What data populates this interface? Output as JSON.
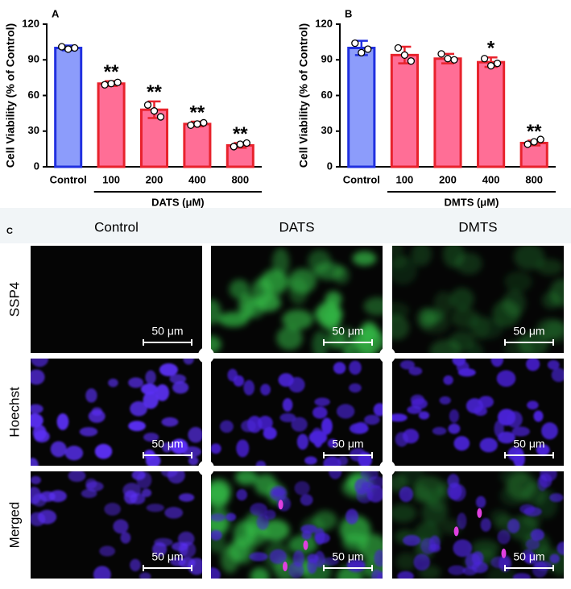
{
  "chart_data": [
    {
      "type": "bar",
      "panel": "A",
      "ylabel": "Cell Viability (% of Control)",
      "categories": [
        "Control",
        "100",
        "200",
        "400",
        "800"
      ],
      "values": [
        100,
        70,
        48,
        36,
        18
      ],
      "errors": [
        2,
        2,
        7,
        2,
        2
      ],
      "points": [
        [
          101,
          99,
          100
        ],
        [
          69,
          70,
          71
        ],
        [
          52,
          47,
          42
        ],
        [
          35,
          36,
          37
        ],
        [
          17,
          19,
          20
        ]
      ],
      "bar_colors": [
        "#8c9cfb",
        "#ff6e96",
        "#ff6e96",
        "#ff6e96",
        "#ff6e96"
      ],
      "edge_colors": [
        "#2030e0",
        "#e8222c",
        "#e8222c",
        "#e8222c",
        "#e8222c"
      ],
      "group_label": "DATS (μM)",
      "annotations": [
        {
          "index": 1,
          "text": "**"
        },
        {
          "index": 2,
          "text": "**"
        },
        {
          "index": 3,
          "text": "**"
        },
        {
          "index": 4,
          "text": "**"
        }
      ],
      "ylim": [
        0,
        120
      ],
      "yticks": [
        0,
        30,
        60,
        90,
        120
      ]
    },
    {
      "type": "bar",
      "panel": "B",
      "ylabel": "Cell Viability (% of Control)",
      "categories": [
        "Control",
        "100",
        "200",
        "400",
        "800"
      ],
      "values": [
        100,
        94,
        91,
        88,
        20
      ],
      "errors": [
        6,
        7,
        4,
        4,
        2
      ],
      "points": [
        [
          104,
          96,
          99
        ],
        [
          100,
          94,
          89
        ],
        [
          95,
          91,
          90
        ],
        [
          91,
          85,
          87
        ],
        [
          19,
          21,
          23
        ]
      ],
      "bar_colors": [
        "#8c9cfb",
        "#ff6e96",
        "#ff6e96",
        "#ff6e96",
        "#ff6e96"
      ],
      "edge_colors": [
        "#2030e0",
        "#e8222c",
        "#e8222c",
        "#e8222c",
        "#e8222c"
      ],
      "group_label": "DMTS (μM)",
      "annotations": [
        {
          "index": 3,
          "text": "*"
        },
        {
          "index": 4,
          "text": "**"
        }
      ],
      "ylim": [
        0,
        120
      ],
      "yticks": [
        0,
        30,
        60,
        90,
        120
      ]
    }
  ],
  "panel_c": {
    "label": "C",
    "columns": [
      "Control",
      "DATS",
      "DMTS"
    ],
    "rows": [
      "SSP4",
      "Hoechst",
      "Merged"
    ],
    "scale_bar": "50 μm"
  }
}
